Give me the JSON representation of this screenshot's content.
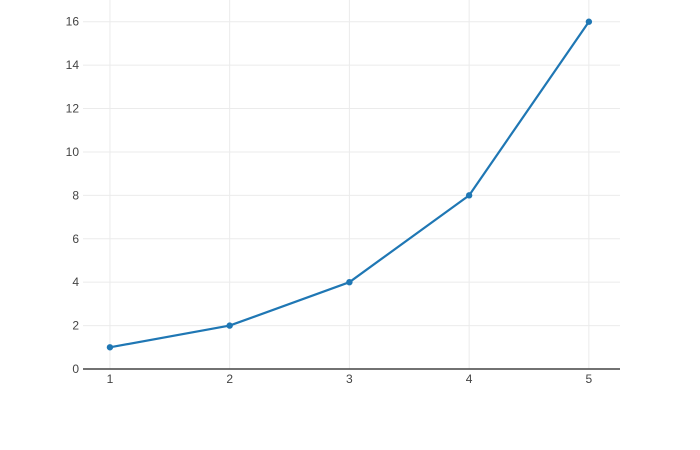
{
  "page": {
    "background_color": "#ffffff"
  },
  "chart_data": {
    "type": "line",
    "x": [
      1,
      2,
      3,
      4,
      5
    ],
    "y": [
      1,
      2,
      4,
      8,
      16
    ],
    "x_tick_labels": [
      "1",
      "2",
      "3",
      "4",
      "5"
    ],
    "y_tick_labels": [
      "0",
      "2",
      "4",
      "6",
      "8",
      "10",
      "12",
      "14",
      "16"
    ],
    "x_ticks": [
      1,
      2,
      3,
      4,
      5
    ],
    "y_ticks": [
      0,
      2,
      4,
      6,
      8,
      10,
      12,
      14,
      16
    ],
    "xlim": [
      0.775,
      5.26
    ],
    "ylim": [
      0,
      17
    ],
    "grid": true,
    "legend": false,
    "marker_style": "circle",
    "line_color": "#1f77b4",
    "marker_color": "#1f77b4",
    "grid_color": "#ebebeb",
    "axis_line_color": "#444444",
    "tick_label_color": "#444444",
    "background_color": "#ffffff"
  }
}
